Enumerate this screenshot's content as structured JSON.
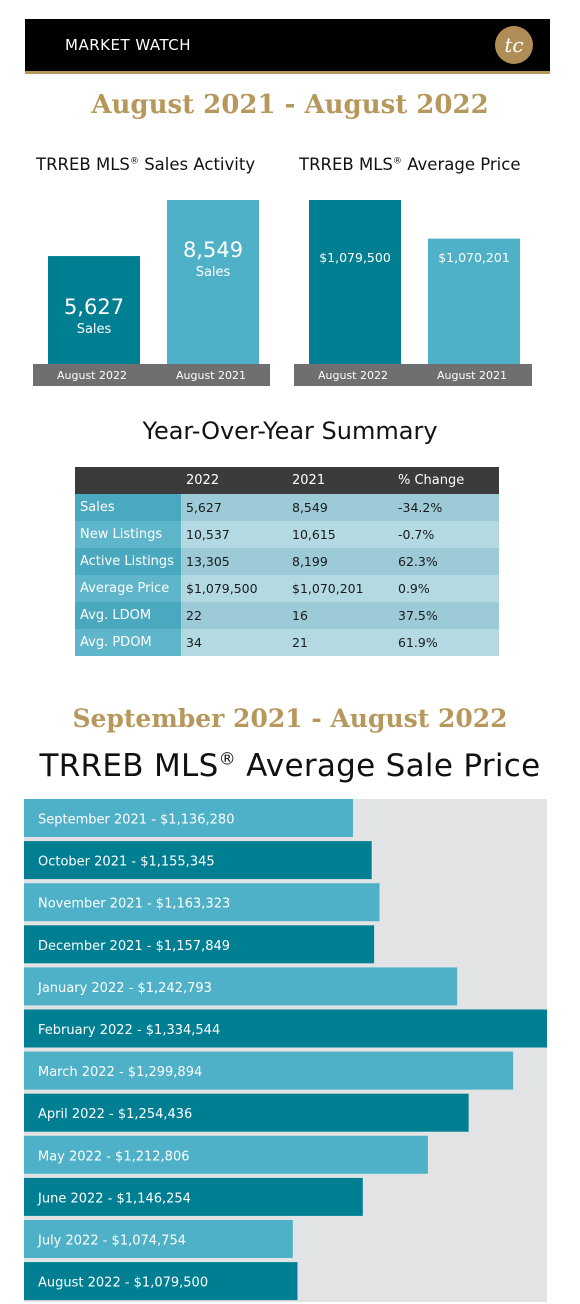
{
  "header": {
    "title": "MARKET WATCH",
    "logo_text": "tc"
  },
  "colors": {
    "dark_teal": "#007f93",
    "light_teal": "#4fb1c8",
    "gold": "#b7985c",
    "axis_gray": "#6f6f71",
    "track_gray": "#e2e3e5"
  },
  "period_1": "August 2021 - August 2022",
  "sales_activity": {
    "title": "TRREB MLS",
    "title_reg": "®",
    "title_rest": " Sales Activity",
    "chart_data": {
      "type": "bar",
      "categories": [
        "August 2022",
        "August 2021"
      ],
      "values": [
        5627,
        8549
      ],
      "value_labels": [
        "5,627",
        "8,549"
      ],
      "unit_label": "Sales"
    }
  },
  "average_price": {
    "title": "TRREB MLS",
    "title_reg": "®",
    "title_rest": " Average Price",
    "chart_data": {
      "type": "bar",
      "categories": [
        "August 2022",
        "August 2021"
      ],
      "values": [
        1079500,
        1070201
      ],
      "value_labels": [
        "$1,079,500",
        "$1,070,201"
      ]
    }
  },
  "summary": {
    "title": "Year-Over-Year Summary",
    "columns": [
      "",
      "2022",
      "2021",
      "% Change"
    ],
    "rows": [
      [
        "Sales",
        "5,627",
        "8,549",
        "-34.2%"
      ],
      [
        "New Listings",
        "10,537",
        "10,615",
        "-0.7%"
      ],
      [
        "Active Listings",
        "13,305",
        "8,199",
        "62.3%"
      ],
      [
        "Average Price",
        "$1,079,500",
        "$1,070,201",
        "0.9%"
      ],
      [
        "Avg. LDOM",
        "22",
        "16",
        "37.5%"
      ],
      [
        "Avg. PDOM",
        "34",
        "21",
        "61.9%"
      ]
    ]
  },
  "period_2": "September 2021 - August 2022",
  "monthly": {
    "title": "TRREB MLS",
    "title_reg": "®",
    "title_rest": " Average Sale Price",
    "chart_data": {
      "type": "bar",
      "orientation": "horizontal",
      "categories": [
        "September 2021",
        "October 2021",
        "November 2021",
        "December 2021",
        "January 2022",
        "February 2022",
        "March 2022",
        "April 2022",
        "May 2022",
        "June 2022",
        "July 2022",
        "August 2022"
      ],
      "values": [
        1136280,
        1155345,
        1163323,
        1157849,
        1242793,
        1334544,
        1299894,
        1254436,
        1212806,
        1146254,
        1074754,
        1079500
      ],
      "labels": [
        "September 2021 - $1,136,280",
        "October 2021 - $1,155,345",
        "November 2021 - $1,163,323",
        "December 2021 - $1,157,849",
        "January 2022 - $1,242,793",
        "February 2022 - $1,334,544",
        "March 2022 - $1,299,894",
        "April 2022 - $1,254,436",
        "May 2022 - $1,212,806",
        "June 2022 - $1,146,254",
        "July 2022 - $1,074,754",
        "August 2022 - $1,079,500"
      ]
    }
  }
}
